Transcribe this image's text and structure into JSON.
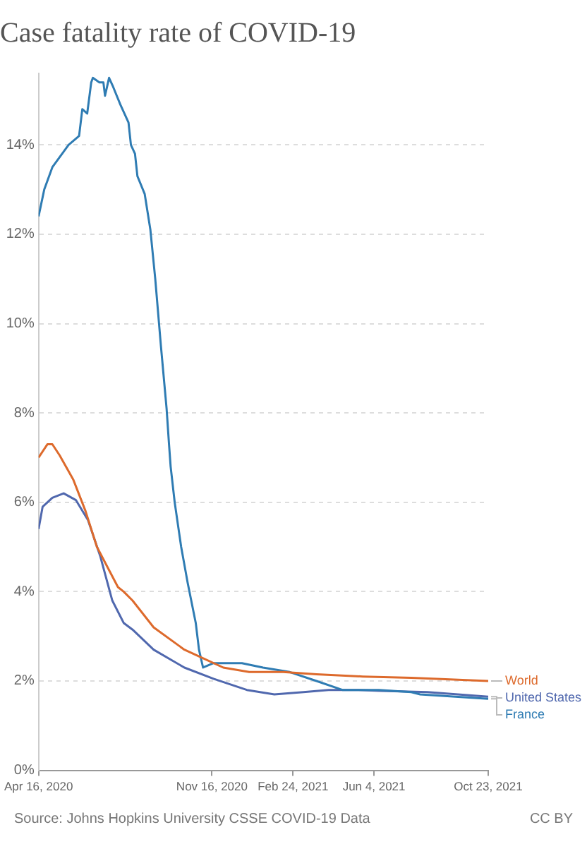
{
  "chart_data": {
    "type": "line",
    "title": "Case fatality rate of COVID-19",
    "annotations": [
      "Source: Johns Hopkins University CSSE COVID-19 Data",
      "CC BY"
    ],
    "xlim": [
      "2020-04-16",
      "2021-10-23"
    ],
    "xticks": [
      {
        "value": "2020-04-16",
        "label": "Apr 16, 2020"
      },
      {
        "value": "2020-11-16",
        "label": "Nov 16, 2020"
      },
      {
        "value": "2021-02-24",
        "label": "Feb 24, 2021"
      },
      {
        "value": "2021-06-04",
        "label": "Jun 4, 2021"
      },
      {
        "value": "2021-10-23",
        "label": "Oct 23, 2021"
      }
    ],
    "ylim": [
      0,
      15.6
    ],
    "yticks": [
      {
        "value": 0,
        "label": "0%"
      },
      {
        "value": 2,
        "label": "2%"
      },
      {
        "value": 4,
        "label": "4%"
      },
      {
        "value": 6,
        "label": "6%"
      },
      {
        "value": 8,
        "label": "8%"
      },
      {
        "value": 10,
        "label": "10%"
      },
      {
        "value": 12,
        "label": "12%"
      },
      {
        "value": 14,
        "label": "14%"
      }
    ],
    "grid": "y",
    "series": [
      {
        "name": "World",
        "color": "#dd6a2c",
        "x": [
          "2020-04-16",
          "2020-04-27",
          "2020-05-03",
          "2020-05-12",
          "2020-05-29",
          "2020-06-13",
          "2020-06-27",
          "2020-07-23",
          "2020-07-30",
          "2020-08-10",
          "2020-09-05",
          "2020-10-13",
          "2020-10-31",
          "2020-11-30",
          "2021-01-01",
          "2021-02-12",
          "2021-03-25",
          "2021-05-21",
          "2021-07-20",
          "2021-10-23"
        ],
        "values": [
          7.0,
          7.3,
          7.3,
          7.05,
          6.5,
          5.8,
          5.0,
          4.1,
          4.0,
          3.8,
          3.2,
          2.7,
          2.55,
          2.3,
          2.2,
          2.2,
          2.15,
          2.1,
          2.07,
          2.0
        ]
      },
      {
        "name": "France",
        "color": "#2f7cb3",
        "x": [
          "2020-04-16",
          "2020-04-23",
          "2020-05-03",
          "2020-05-23",
          "2020-06-05",
          "2020-06-09",
          "2020-06-15",
          "2020-06-20",
          "2020-06-22",
          "2020-06-30",
          "2020-07-05",
          "2020-07-07",
          "2020-07-12",
          "2020-07-17",
          "2020-07-26",
          "2020-08-05",
          "2020-08-08",
          "2020-08-13",
          "2020-08-16",
          "2020-08-25",
          "2020-09-01",
          "2020-09-07",
          "2020-09-14",
          "2020-09-21",
          "2020-09-24",
          "2020-09-26",
          "2020-10-01",
          "2020-10-09",
          "2020-10-17",
          "2020-10-27",
          "2020-10-31",
          "2020-11-05",
          "2020-11-18",
          "2020-12-23",
          "2021-01-18",
          "2021-02-20",
          "2021-03-25",
          "2021-04-26",
          "2021-05-19",
          "2021-06-10",
          "2021-07-20",
          "2021-07-31",
          "2021-10-23"
        ],
        "values": [
          12.4,
          13.0,
          13.5,
          14.0,
          14.2,
          14.8,
          14.7,
          15.4,
          15.5,
          15.4,
          15.4,
          15.1,
          15.5,
          15.3,
          14.9,
          14.5,
          14.0,
          13.8,
          13.3,
          12.9,
          12.1,
          11.0,
          9.5,
          8.1,
          7.3,
          6.8,
          6.0,
          5.0,
          4.2,
          3.3,
          2.7,
          2.3,
          2.4,
          2.4,
          2.3,
          2.2,
          2.0,
          1.8,
          1.8,
          1.8,
          1.75,
          1.7,
          1.6
        ]
      },
      {
        "name": "United States",
        "color": "#5068ae",
        "x": [
          "2020-04-16",
          "2020-04-21",
          "2020-05-03",
          "2020-05-17",
          "2020-06-01",
          "2020-06-16",
          "2020-07-01",
          "2020-07-16",
          "2020-07-30",
          "2020-08-10",
          "2020-09-05",
          "2020-10-13",
          "2020-11-18",
          "2020-12-29",
          "2021-02-01",
          "2021-03-09",
          "2021-04-09",
          "2021-05-15",
          "2021-06-12",
          "2021-08-09",
          "2021-10-23"
        ],
        "values": [
          5.4,
          5.9,
          6.1,
          6.2,
          6.05,
          5.6,
          4.8,
          3.8,
          3.3,
          3.15,
          2.7,
          2.3,
          2.05,
          1.8,
          1.7,
          1.75,
          1.8,
          1.8,
          1.78,
          1.75,
          1.65
        ]
      }
    ]
  }
}
